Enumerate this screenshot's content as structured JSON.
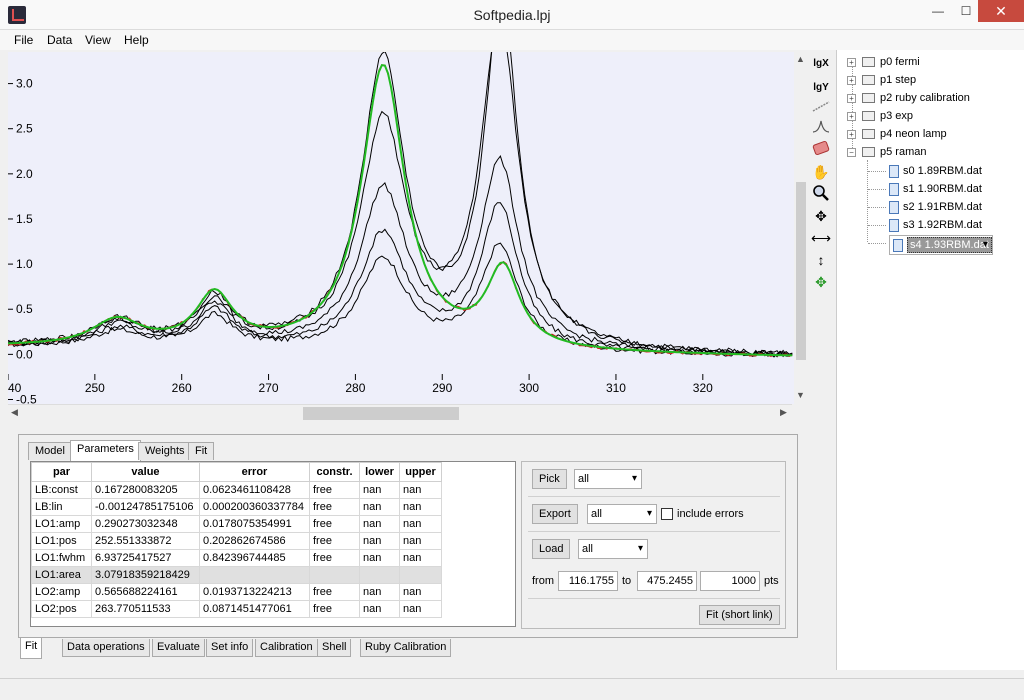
{
  "window": {
    "title": "Softpedia.lpj",
    "minimize": "—",
    "maximize": "☐",
    "close": "✕"
  },
  "menu": [
    "File",
    "Data",
    "View",
    "Help"
  ],
  "plot": {
    "xticks": [
      "40",
      "250",
      "260",
      "270",
      "280",
      "290",
      "300",
      "310",
      "320"
    ],
    "yticks": [
      "3.0",
      "2.5",
      "2.0",
      "1.5",
      "1.0",
      "0.5",
      "0.0",
      "-0.5"
    ],
    "colors": {
      "bg": "#eeeffa",
      "data": "#000000",
      "model": "#22bb22",
      "residual": "#d02020"
    }
  },
  "tools": {
    "lgx": "lgX",
    "lgy": "lgY"
  },
  "tree": {
    "folders": [
      "p0 fermi",
      "p1 step",
      "p2 ruby calibration",
      "p3 exp",
      "p4 neon lamp",
      "p5 raman"
    ],
    "files": [
      "s0 1.89RBM.dat",
      "s1 1.90RBM.dat",
      "s2 1.91RBM.dat",
      "s3 1.92RBM.dat",
      "s4 1.93RBM.dat"
    ]
  },
  "inner_tabs": [
    "Model",
    "Parameters",
    "Weights",
    "Fit"
  ],
  "table": {
    "headers": [
      "par",
      "value",
      "error",
      "constr.",
      "lower",
      "upper"
    ],
    "rows": [
      [
        "LB:const",
        "0.167280083205",
        "0.0623461108428",
        "free",
        "nan",
        "nan"
      ],
      [
        "LB:lin",
        "-0.00124785175106",
        "0.000200360337784",
        "free",
        "nan",
        "nan"
      ],
      [
        "LO1:amp",
        "0.290273032348",
        "0.0178075354991",
        "free",
        "nan",
        "nan"
      ],
      [
        "LO1:pos",
        "252.551333872",
        "0.202862674586",
        "free",
        "nan",
        "nan"
      ],
      [
        "LO1:fwhm",
        "6.93725417527",
        "0.842396744485",
        "free",
        "nan",
        "nan"
      ],
      [
        "LO1:area",
        "3.07918359218429",
        "",
        "",
        "",
        ""
      ],
      [
        "LO2:amp",
        "0.565688224161",
        "0.0193713224213",
        "free",
        "nan",
        "nan"
      ],
      [
        "LO2:pos",
        "263.770511533",
        "0.0871451477061",
        "free",
        "nan",
        "nan"
      ]
    ]
  },
  "controls": {
    "pick_label": "Pick",
    "pick_value": "all",
    "export_label": "Export",
    "export_value": "all",
    "include_errors": "include errors",
    "load_label": "Load",
    "load_value": "all",
    "from_label": "from",
    "from_value": "116.1755",
    "to_label": "to",
    "to_value": "475.2455",
    "points_value": "1000",
    "pts_label": "pts",
    "fit_button": "Fit (short link)"
  },
  "outer_tabs": [
    "Fit",
    "Data operations",
    "Evaluate",
    "Set info",
    "Calibration",
    "Shell",
    "Ruby Calibration"
  ]
}
